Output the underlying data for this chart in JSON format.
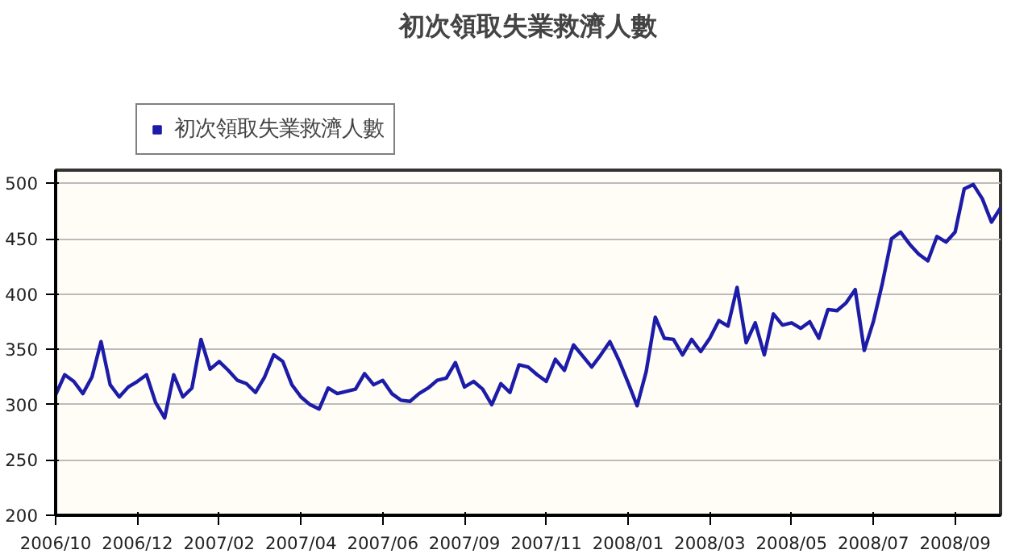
{
  "chart_data": {
    "type": "line",
    "title": "初次領取失業救濟人數",
    "categories": [
      "2006/10",
      null,
      null,
      null,
      null,
      null,
      null,
      null,
      null,
      "2006/12",
      null,
      null,
      null,
      null,
      null,
      null,
      null,
      null,
      "2007/02",
      null,
      null,
      null,
      null,
      null,
      null,
      null,
      null,
      "2007/04",
      null,
      null,
      null,
      null,
      null,
      null,
      null,
      null,
      "2007/06",
      null,
      null,
      null,
      null,
      null,
      null,
      null,
      null,
      "2007/09",
      null,
      null,
      null,
      null,
      null,
      null,
      null,
      null,
      "2007/11",
      null,
      null,
      null,
      null,
      null,
      null,
      null,
      null,
      "2008/01",
      null,
      null,
      null,
      null,
      null,
      null,
      null,
      null,
      "2008/03",
      null,
      null,
      null,
      null,
      null,
      null,
      null,
      null,
      "2008/05",
      null,
      null,
      null,
      null,
      null,
      null,
      null,
      null,
      "2008/07",
      null,
      null,
      null,
      null,
      null,
      null,
      null,
      null,
      "2008/09",
      null,
      null,
      null,
      null,
      null
    ],
    "series": [
      {
        "name": "初次領取失業救濟人數",
        "color": "#1c1ca8",
        "values": [
          309,
          327,
          321,
          310,
          325,
          357,
          318,
          307,
          316,
          321,
          327,
          302,
          288,
          327,
          307,
          315,
          359,
          332,
          339,
          331,
          322,
          319,
          311,
          325,
          345,
          339,
          318,
          307,
          300,
          296,
          315,
          310,
          312,
          314,
          328,
          318,
          322,
          310,
          304,
          303,
          310,
          315,
          322,
          324,
          338,
          316,
          321,
          314,
          300,
          319,
          311,
          336,
          334,
          327,
          321,
          341,
          331,
          354,
          344,
          334,
          345,
          357,
          340,
          320,
          299,
          330,
          379,
          360,
          359,
          345,
          359,
          348,
          360,
          376,
          371,
          406,
          356,
          374,
          345,
          382,
          372,
          374,
          369,
          375,
          360,
          386,
          385,
          392,
          404,
          349,
          375,
          410,
          450,
          456,
          445,
          436,
          430,
          452,
          447,
          456,
          495,
          499,
          486,
          465,
          478
        ]
      }
    ],
    "ylim": [
      200,
      512
    ],
    "yticks": [
      200,
      250,
      300,
      350,
      400,
      450,
      500
    ],
    "grid": "y",
    "legend": "top left",
    "marker": "none",
    "line_style": "solid"
  }
}
